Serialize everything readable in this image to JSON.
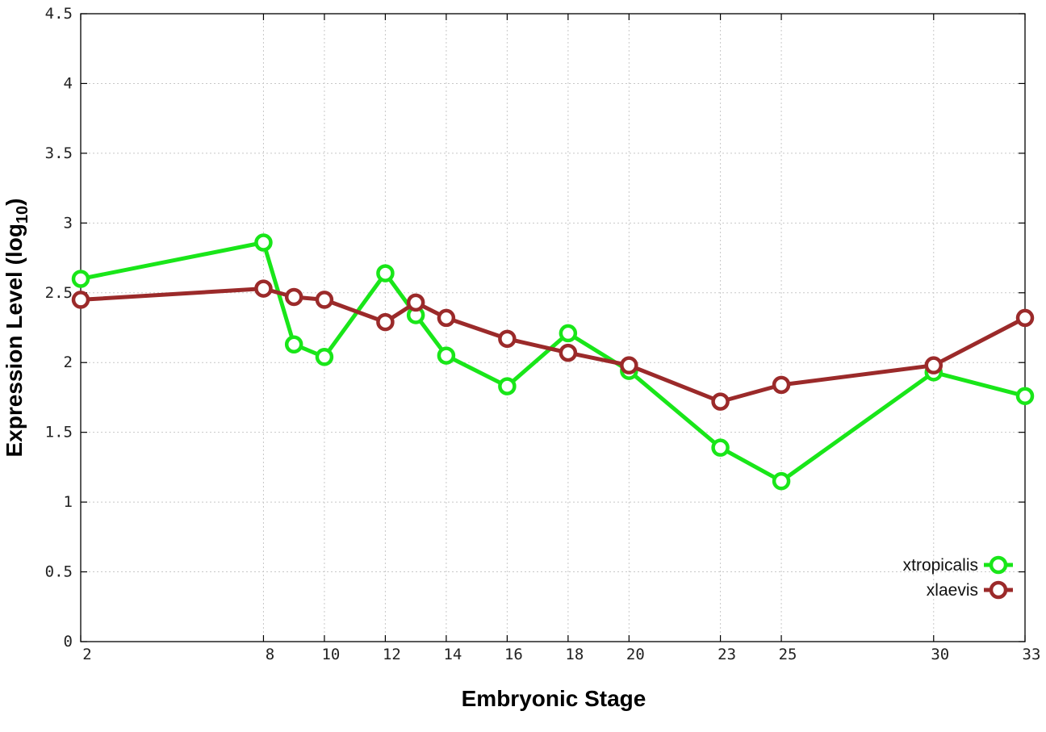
{
  "chart_data": {
    "type": "line",
    "xlabel": "Embryonic Stage",
    "ylabel_main": "Expression Level (log",
    "ylabel_sub": "10",
    "ylabel_close": ")",
    "x_ticks": [
      2,
      8,
      10,
      12,
      14,
      16,
      18,
      20,
      23,
      25,
      30,
      33
    ],
    "y_ticks": [
      0,
      0.5,
      1,
      1.5,
      2,
      2.5,
      3,
      3.5,
      4,
      4.5
    ],
    "y_tick_labels": [
      "0",
      "0.5",
      "1",
      "1.5",
      "2",
      "2.5",
      "3",
      "3.5",
      "4",
      "4.5"
    ],
    "xlim": [
      2,
      33
    ],
    "ylim": [
      0,
      4.5
    ],
    "grid": true,
    "legend_position": "bottom-right",
    "series": [
      {
        "name": "xtropicalis",
        "color": "#19e619",
        "x": [
          2,
          8,
          9,
          10,
          12,
          13,
          14,
          16,
          18,
          20,
          23,
          25,
          30,
          33
        ],
        "y": [
          2.6,
          2.86,
          2.13,
          2.04,
          2.64,
          2.34,
          2.05,
          1.83,
          2.21,
          1.94,
          1.39,
          1.15,
          1.93,
          1.76
        ]
      },
      {
        "name": "xlaevis",
        "color": "#9b2a2a",
        "x": [
          2,
          8,
          9,
          10,
          12,
          13,
          14,
          16,
          18,
          20,
          23,
          25,
          30,
          33
        ],
        "y": [
          2.45,
          2.53,
          2.47,
          2.45,
          2.29,
          2.43,
          2.32,
          2.17,
          2.07,
          1.98,
          1.72,
          1.84,
          1.98,
          2.32
        ]
      }
    ]
  }
}
